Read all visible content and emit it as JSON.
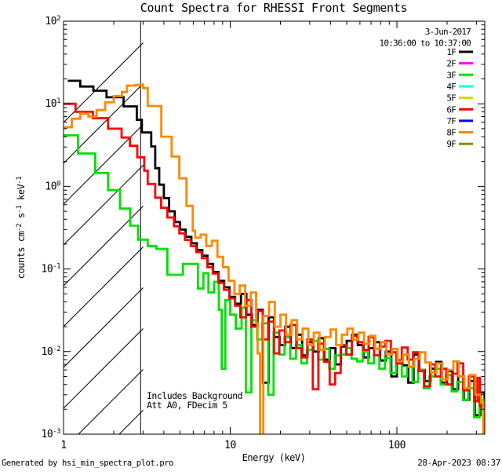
{
  "title": "Count Spectra for RHESSI Front Segments",
  "header": {
    "date": "3-Jun-2017",
    "interval": "10:36:00 to 10:37:00"
  },
  "notes": {
    "line1": "Includes Background",
    "line2": "Att A0, FDecim 5"
  },
  "footer": {
    "left": "Generated by hsi_min_spectra_plot.pro",
    "right": "28-Apr-2023 08:37"
  },
  "legend": [
    {
      "label": "1F",
      "color": "#000000"
    },
    {
      "label": "2F",
      "color": "#ff00ff"
    },
    {
      "label": "3F",
      "color": "#00e000"
    },
    {
      "label": "4F",
      "color": "#00ffff"
    },
    {
      "label": "5F",
      "color": "#d6d600"
    },
    {
      "label": "6F",
      "color": "#ff0000"
    },
    {
      "label": "7F",
      "color": "#0000ff"
    },
    {
      "label": "8F",
      "color": "#ff8800"
    },
    {
      "label": "9F",
      "color": "#8a8a00"
    }
  ],
  "chart_data": {
    "type": "line",
    "subtype": "step-histogram",
    "scale": "log-log",
    "xlabel": "Energy (keV)",
    "ylabel_parts": [
      {
        "t": "counts cm"
      },
      {
        "t": "-2",
        "sup": true
      },
      {
        "t": " s"
      },
      {
        "t": "-1",
        "sup": true
      },
      {
        "t": " keV"
      },
      {
        "t": "-1",
        "sup": true
      }
    ],
    "xlim": [
      1,
      336
    ],
    "ylim": [
      0.001,
      100
    ],
    "x_ticks": [
      {
        "v": 1,
        "label": "1"
      },
      {
        "v": 10,
        "label": "10"
      },
      {
        "v": 100,
        "label": "100"
      }
    ],
    "y_ticks": [
      {
        "v": 100,
        "base": "10",
        "exp": "2"
      },
      {
        "v": 10,
        "base": "10",
        "exp": "1"
      },
      {
        "v": 1,
        "base": "10",
        "exp": "0"
      },
      {
        "v": 0.1,
        "base": "10",
        "exp": "-1"
      },
      {
        "v": 0.01,
        "base": "10",
        "exp": "-2"
      },
      {
        "v": 0.001,
        "base": "10",
        "exp": "-3"
      }
    ],
    "hatch_region": {
      "from": 1,
      "to": 2.9,
      "style": "diagonal-hatch"
    },
    "series": [
      {
        "name": "1F",
        "color": "#000000",
        "points": [
          [
            1.06,
            19
          ],
          [
            1.26,
            16.2
          ],
          [
            1.51,
            14.4
          ],
          [
            1.81,
            12.0
          ],
          [
            2.29,
            9.3
          ],
          [
            2.75,
            6.4
          ],
          [
            2.95,
            4.5
          ],
          [
            3.36,
            3.05
          ],
          [
            3.55,
            1.66
          ],
          [
            3.75,
            1.05
          ],
          [
            4.0,
            0.72
          ],
          [
            4.3,
            0.5
          ],
          [
            4.65,
            0.37
          ],
          [
            5.0,
            0.3
          ],
          [
            5.4,
            0.245
          ],
          [
            5.85,
            0.205
          ],
          [
            6.3,
            0.17
          ],
          [
            6.8,
            0.145
          ],
          [
            7.3,
            0.115
          ],
          [
            7.9,
            0.092
          ],
          [
            8.5,
            0.072
          ],
          [
            9.2,
            0.06
          ],
          [
            9.9,
            0.046
          ],
          [
            10.7,
            0.038
          ],
          [
            11.6,
            0.05
          ],
          [
            12.5,
            0.028
          ],
          [
            13.5,
            0.021
          ],
          [
            14.6,
            0.032
          ],
          [
            15.7,
            0.0042
          ],
          [
            17.0,
            0.026
          ],
          [
            18.3,
            0.015
          ],
          [
            19.8,
            0.012
          ],
          [
            21.4,
            0.02
          ],
          [
            23.1,
            0.011
          ],
          [
            25.0,
            0.016
          ],
          [
            27.0,
            0.009
          ],
          [
            29.1,
            0.013
          ],
          [
            31.5,
            0.01
          ],
          [
            34.0,
            0.0145
          ],
          [
            36.7,
            0.008
          ],
          [
            39.6,
            0.011
          ],
          [
            42.8,
            0.007
          ],
          [
            46.2,
            0.0115
          ],
          [
            50.0,
            0.0135
          ],
          [
            54.0,
            0.016
          ],
          [
            58.3,
            0.012
          ],
          [
            63.0,
            0.0085
          ],
          [
            68.0,
            0.011
          ],
          [
            73.5,
            0.013
          ],
          [
            79.4,
            0.0078
          ],
          [
            85.7,
            0.01
          ],
          [
            92.6,
            0.005
          ],
          [
            100,
            0.0078
          ],
          [
            108,
            0.0068
          ],
          [
            117,
            0.0042
          ],
          [
            126,
            0.0092
          ],
          [
            136,
            0.006
          ],
          [
            147,
            0.0044
          ],
          [
            159,
            0.0062
          ],
          [
            172,
            0.0075
          ],
          [
            185,
            0.0042
          ],
          [
            200,
            0.0058
          ],
          [
            216,
            0.0035
          ],
          [
            233,
            0.005
          ],
          [
            252,
            0.0026
          ],
          [
            272,
            0.0044
          ],
          [
            294,
            0.0017
          ],
          [
            317,
            0.0032
          ],
          [
            336,
            0.0022
          ]
        ]
      },
      {
        "name": "3F",
        "color": "#00e000",
        "points": [
          [
            1.0,
            4.15
          ],
          [
            1.22,
            2.5
          ],
          [
            1.55,
            1.45
          ],
          [
            1.85,
            0.9
          ],
          [
            2.18,
            0.54
          ],
          [
            2.51,
            0.335
          ],
          [
            2.8,
            0.226
          ],
          [
            3.2,
            0.19
          ],
          [
            3.6,
            0.175
          ],
          [
            4.2,
            0.085
          ],
          [
            5.2,
            0.115
          ],
          [
            6.4,
            0.058
          ],
          [
            6.9,
            0.089
          ],
          [
            7.4,
            0.052
          ],
          [
            8.0,
            0.07
          ],
          [
            8.55,
            0.032
          ],
          [
            8.9,
            0.0062
          ],
          [
            9.35,
            0.042
          ],
          [
            10.0,
            0.028
          ],
          [
            10.8,
            0.019
          ],
          [
            11.7,
            0.034
          ],
          [
            12.4,
            0.0032
          ],
          [
            13.4,
            0.024
          ],
          [
            14.5,
            0.014
          ],
          [
            15.6,
            0.022
          ],
          [
            16.9,
            0.003
          ],
          [
            18.2,
            0.017
          ],
          [
            19.7,
            0.0092
          ],
          [
            21.2,
            0.015
          ],
          [
            22.9,
            0.0082
          ],
          [
            24.8,
            0.012
          ],
          [
            26.7,
            0.0072
          ],
          [
            28.9,
            0.0105
          ],
          [
            31.2,
            0.0135
          ],
          [
            33.7,
            0.008
          ],
          [
            36.4,
            0.0108
          ],
          [
            39.3,
            0.0062
          ],
          [
            42.4,
            0.009
          ],
          [
            45.8,
            0.0092
          ],
          [
            49.5,
            0.011
          ],
          [
            53.4,
            0.0082
          ],
          [
            57.7,
            0.0076
          ],
          [
            62.3,
            0.01
          ],
          [
            67.3,
            0.0072
          ],
          [
            72.7,
            0.009
          ],
          [
            78.5,
            0.0062
          ],
          [
            84.8,
            0.0084
          ],
          [
            91.5,
            0.0055
          ],
          [
            98.9,
            0.0072
          ],
          [
            107,
            0.005
          ],
          [
            115,
            0.0065
          ],
          [
            124,
            0.0043
          ],
          [
            134,
            0.006
          ],
          [
            145,
            0.0036
          ],
          [
            157,
            0.005
          ],
          [
            169,
            0.0062
          ],
          [
            183,
            0.004
          ],
          [
            197,
            0.0052
          ],
          [
            213,
            0.0033
          ],
          [
            230,
            0.0043
          ],
          [
            249,
            0.0026
          ],
          [
            268,
            0.0036
          ],
          [
            290,
            0.0016
          ],
          [
            313,
            0.0026
          ],
          [
            336,
            0.0014
          ]
        ]
      },
      {
        "name": "6F",
        "color": "#ff0000",
        "points": [
          [
            1.0,
            10.0
          ],
          [
            1.18,
            8.0
          ],
          [
            1.5,
            6.7
          ],
          [
            1.85,
            5.0
          ],
          [
            2.23,
            3.9
          ],
          [
            2.5,
            3.1
          ],
          [
            2.77,
            2.25
          ],
          [
            3.05,
            1.55
          ],
          [
            3.2,
            1.07
          ],
          [
            3.55,
            0.73
          ],
          [
            3.85,
            0.55
          ],
          [
            4.2,
            0.42
          ],
          [
            4.6,
            0.33
          ],
          [
            4.95,
            0.27
          ],
          [
            5.35,
            0.225
          ],
          [
            5.8,
            0.19
          ],
          [
            6.25,
            0.16
          ],
          [
            6.75,
            0.135
          ],
          [
            7.3,
            0.105
          ],
          [
            7.85,
            0.088
          ],
          [
            8.5,
            0.068
          ],
          [
            9.15,
            0.056
          ],
          [
            9.9,
            0.044
          ],
          [
            10.7,
            0.036
          ],
          [
            11.5,
            0.026
          ],
          [
            12.4,
            0.042
          ],
          [
            13.4,
            0.02
          ],
          [
            14.5,
            0.031
          ],
          [
            15.7,
            0.014
          ],
          [
            16.9,
            0.023
          ],
          [
            18.3,
            0.0095
          ],
          [
            19.7,
            0.018
          ],
          [
            21.3,
            0.013
          ],
          [
            23.0,
            0.021
          ],
          [
            24.9,
            0.011
          ],
          [
            26.8,
            0.0085
          ],
          [
            29.0,
            0.014
          ],
          [
            31.3,
            0.0035
          ],
          [
            33.8,
            0.0125
          ],
          [
            36.5,
            0.0075
          ],
          [
            39.5,
            0.004
          ],
          [
            42.6,
            0.0055
          ],
          [
            46.0,
            0.012
          ],
          [
            49.7,
            0.0092
          ],
          [
            53.7,
            0.0155
          ],
          [
            58.0,
            0.013
          ],
          [
            62.6,
            0.0105
          ],
          [
            67.6,
            0.015
          ],
          [
            73.0,
            0.009
          ],
          [
            78.9,
            0.0115
          ],
          [
            85.2,
            0.0135
          ],
          [
            92.0,
            0.0098
          ],
          [
            99.4,
            0.0072
          ],
          [
            107,
            0.0112
          ],
          [
            116,
            0.008
          ],
          [
            125,
            0.0098
          ],
          [
            135,
            0.0058
          ],
          [
            146,
            0.0038
          ],
          [
            158,
            0.007
          ],
          [
            170,
            0.005
          ],
          [
            184,
            0.0062
          ],
          [
            198,
            0.004
          ],
          [
            214,
            0.0054
          ],
          [
            231,
            0.0072
          ],
          [
            250,
            0.0034
          ],
          [
            270,
            0.005
          ],
          [
            291,
            0.0025
          ],
          [
            305,
            0.0048
          ],
          [
            315,
            0.0022
          ],
          [
            336,
            0.0016
          ]
        ]
      },
      {
        "name": "8F",
        "color": "#ff8800",
        "points": [
          [
            1.0,
            5.2
          ],
          [
            1.12,
            6.6
          ],
          [
            1.26,
            7.6
          ],
          [
            1.41,
            7.0
          ],
          [
            1.58,
            8.4
          ],
          [
            1.78,
            10.4
          ],
          [
            2.0,
            12.4
          ],
          [
            2.24,
            13.9
          ],
          [
            2.4,
            16.6
          ],
          [
            2.7,
            16.9
          ],
          [
            3.0,
            15.5
          ],
          [
            3.2,
            9.4
          ],
          [
            3.86,
            4.0
          ],
          [
            4.45,
            2.3
          ],
          [
            4.95,
            1.25
          ],
          [
            5.46,
            0.58
          ],
          [
            5.96,
            0.29
          ],
          [
            6.16,
            0.24
          ],
          [
            6.65,
            0.26
          ],
          [
            7.18,
            0.19
          ],
          [
            7.76,
            0.22
          ],
          [
            8.38,
            0.14
          ],
          [
            9.05,
            0.105
          ],
          [
            9.78,
            0.072
          ],
          [
            10.6,
            0.05
          ],
          [
            11.4,
            0.063
          ],
          [
            12.3,
            0.036
          ],
          [
            13.3,
            0.052
          ],
          [
            14.3,
            0.022
          ],
          [
            14.6,
            0.0095
          ],
          [
            15.1,
            0.0006
          ],
          [
            15.8,
            0.027
          ],
          [
            17.1,
            0.04
          ],
          [
            18.5,
            0.02
          ],
          [
            20.0,
            0.028
          ],
          [
            21.6,
            0.016
          ],
          [
            23.3,
            0.024
          ],
          [
            25.2,
            0.014
          ],
          [
            27.2,
            0.019
          ],
          [
            29.4,
            0.012
          ],
          [
            31.7,
            0.017
          ],
          [
            34.3,
            0.0105
          ],
          [
            37.0,
            0.015
          ],
          [
            40.0,
            0.0185
          ],
          [
            43.2,
            0.012
          ],
          [
            46.7,
            0.016
          ],
          [
            50.4,
            0.019
          ],
          [
            54.5,
            0.014
          ],
          [
            58.8,
            0.017
          ],
          [
            63.5,
            0.0125
          ],
          [
            68.6,
            0.0155
          ],
          [
            74.1,
            0.0108
          ],
          [
            80.1,
            0.013
          ],
          [
            86.5,
            0.0092
          ],
          [
            93.4,
            0.0108
          ],
          [
            101,
            0.0076
          ],
          [
            109,
            0.0092
          ],
          [
            118,
            0.0066
          ],
          [
            127,
            0.0082
          ],
          [
            137,
            0.0098
          ],
          [
            148,
            0.0074
          ],
          [
            160,
            0.0056
          ],
          [
            173,
            0.0072
          ],
          [
            187,
            0.0046
          ],
          [
            202,
            0.006
          ],
          [
            218,
            0.0076
          ],
          [
            235,
            0.005
          ],
          [
            254,
            0.0036
          ],
          [
            274,
            0.0052
          ],
          [
            296,
            0.003
          ],
          [
            320,
            0.0024
          ],
          [
            330,
            0.0005
          ]
        ]
      }
    ]
  }
}
